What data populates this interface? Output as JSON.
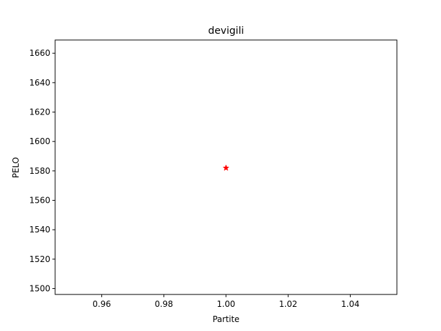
{
  "chart_data": {
    "type": "scatter",
    "title": "devigili",
    "xlabel": "Partite",
    "ylabel": "PELO",
    "xlim": [
      0.945,
      1.055
    ],
    "ylim": [
      1496,
      1669
    ],
    "xticks": [
      0.96,
      0.98,
      1.0,
      1.02,
      1.04
    ],
    "xtick_labels": [
      "0.96",
      "0.98",
      "1.00",
      "1.02",
      "1.04"
    ],
    "yticks": [
      1500,
      1520,
      1540,
      1560,
      1580,
      1600,
      1620,
      1640,
      1660
    ],
    "ytick_labels": [
      "1500",
      "1520",
      "1540",
      "1560",
      "1580",
      "1600",
      "1620",
      "1640",
      "1660"
    ],
    "grid": false,
    "legend": "none",
    "series": [
      {
        "marker": "star",
        "color": "#ff0000",
        "points": [
          {
            "x": 1.0,
            "y": 1582
          }
        ]
      }
    ]
  }
}
